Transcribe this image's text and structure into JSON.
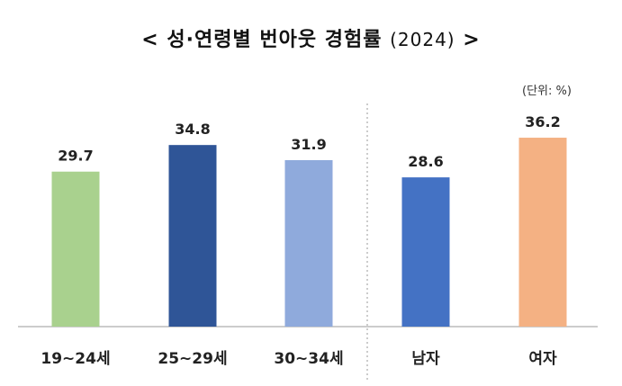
{
  "title": {
    "prefix": "<",
    "text": "성·연령별 번아웃 경험률",
    "year": "(2024)",
    "suffix": ">"
  },
  "unit_label": "(단위: %)",
  "colors": {
    "19~24세": "#a9d18e",
    "25~29세": "#2f5597",
    "30~34세": "#8faadc",
    "남자": "#4472c4",
    "여자": "#f4b183",
    "axis": "#999999",
    "divider": "#999999"
  },
  "chart_data": {
    "type": "bar",
    "title": "성·연령별 번아웃 경험률 (2024)",
    "categories": [
      "19~24세",
      "25~29세",
      "30~34세",
      "남자",
      "여자"
    ],
    "values": [
      29.7,
      34.8,
      31.9,
      28.6,
      36.2
    ],
    "value_labels": [
      "29.7",
      "34.8",
      "31.9",
      "28.6",
      "36.2"
    ],
    "groups": [
      {
        "categories": [
          "19~24세",
          "25~29세",
          "30~34세"
        ]
      },
      {
        "categories": [
          "남자",
          "여자"
        ]
      }
    ],
    "ylim": [
      0,
      40
    ],
    "grid": false,
    "legend": "none",
    "unit": "%"
  }
}
